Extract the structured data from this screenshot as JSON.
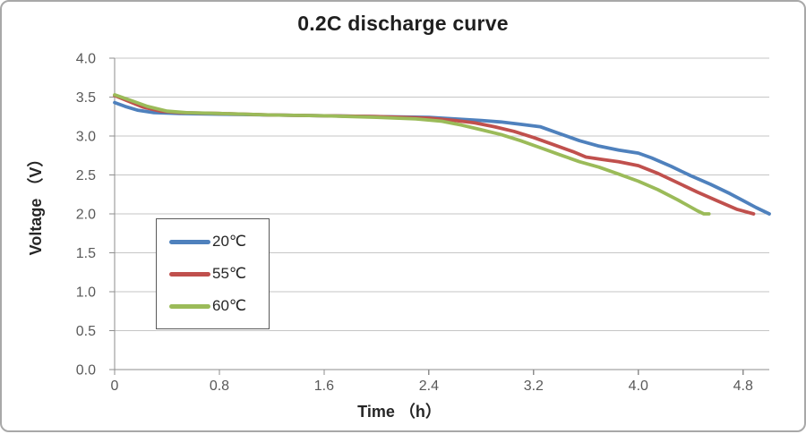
{
  "chart": {
    "title": "0.2C discharge curve",
    "x_axis_title": "Time （h）",
    "y_axis_title": "Voltage （V）"
  },
  "colors": {
    "grid": "#C6C6C6",
    "axis": "#8E8E8E",
    "tick_label": "#595959",
    "title_text": "#1F1F1F",
    "legend_border": "#595959",
    "figure_border": "#A8A8A8",
    "background": "#FFFFFF",
    "series_blue": "#4F81BD",
    "series_red": "#C0504D",
    "series_green": "#9BBB59"
  },
  "chart_data": {
    "type": "line",
    "title": "0.2C discharge curve",
    "xlabel": "Time （h）",
    "ylabel": "Voltage （V）",
    "xlim": [
      0,
      5
    ],
    "ylim": [
      0,
      4
    ],
    "x_ticks": [
      0,
      0.8,
      1.6,
      2.4,
      3.2,
      4,
      4.8
    ],
    "x_tick_labels": [
      "0",
      "0.8",
      "1.6",
      "2.4",
      "3.2",
      "4.0",
      "4.8"
    ],
    "y_ticks": [
      0,
      0.5,
      1,
      1.5,
      2,
      2.5,
      3,
      3.5,
      4
    ],
    "y_tick_labels": [
      "0.0",
      "0.5",
      "1.0",
      "1.5",
      "2.0",
      "2.5",
      "3.0",
      "3.5",
      "4.0"
    ],
    "grid": "horizontal-only",
    "legend_position": "inside-left",
    "series": [
      {
        "name": "20℃",
        "color": "#4F81BD",
        "points": [
          [
            0,
            3.43
          ],
          [
            0.08,
            3.38
          ],
          [
            0.18,
            3.33
          ],
          [
            0.3,
            3.3
          ],
          [
            0.5,
            3.29
          ],
          [
            0.8,
            3.28
          ],
          [
            1.2,
            3.27
          ],
          [
            1.6,
            3.26
          ],
          [
            2,
            3.25
          ],
          [
            2.4,
            3.24
          ],
          [
            2.6,
            3.22
          ],
          [
            2.8,
            3.2
          ],
          [
            2.95,
            3.18
          ],
          [
            3.1,
            3.15
          ],
          [
            3.25,
            3.12
          ],
          [
            3.4,
            3.03
          ],
          [
            3.55,
            2.94
          ],
          [
            3.7,
            2.87
          ],
          [
            3.85,
            2.82
          ],
          [
            4,
            2.78
          ],
          [
            4.1,
            2.72
          ],
          [
            4.25,
            2.61
          ],
          [
            4.4,
            2.49
          ],
          [
            4.55,
            2.38
          ],
          [
            4.7,
            2.26
          ],
          [
            4.8,
            2.17
          ],
          [
            4.9,
            2.08
          ],
          [
            5,
            2
          ]
        ]
      },
      {
        "name": "55℃",
        "color": "#C0504D",
        "points": [
          [
            0,
            3.52
          ],
          [
            0.1,
            3.45
          ],
          [
            0.22,
            3.37
          ],
          [
            0.35,
            3.32
          ],
          [
            0.5,
            3.3
          ],
          [
            0.8,
            3.29
          ],
          [
            1.2,
            3.27
          ],
          [
            1.6,
            3.26
          ],
          [
            2,
            3.25
          ],
          [
            2.4,
            3.23
          ],
          [
            2.6,
            3.2
          ],
          [
            2.75,
            3.17
          ],
          [
            2.9,
            3.12
          ],
          [
            3.05,
            3.06
          ],
          [
            3.2,
            2.98
          ],
          [
            3.35,
            2.89
          ],
          [
            3.5,
            2.8
          ],
          [
            3.6,
            2.73
          ],
          [
            3.72,
            2.7
          ],
          [
            3.85,
            2.67
          ],
          [
            4,
            2.62
          ],
          [
            4.15,
            2.52
          ],
          [
            4.3,
            2.4
          ],
          [
            4.45,
            2.28
          ],
          [
            4.6,
            2.17
          ],
          [
            4.75,
            2.06
          ],
          [
            4.88,
            2
          ]
        ]
      },
      {
        "name": "60℃",
        "color": "#9BBB59",
        "points": [
          [
            0,
            3.53
          ],
          [
            0.12,
            3.46
          ],
          [
            0.25,
            3.38
          ],
          [
            0.4,
            3.32
          ],
          [
            0.55,
            3.3
          ],
          [
            0.8,
            3.29
          ],
          [
            1.2,
            3.27
          ],
          [
            1.6,
            3.26
          ],
          [
            2,
            3.24
          ],
          [
            2.3,
            3.22
          ],
          [
            2.5,
            3.19
          ],
          [
            2.65,
            3.14
          ],
          [
            2.8,
            3.08
          ],
          [
            2.95,
            3.02
          ],
          [
            3.1,
            2.94
          ],
          [
            3.25,
            2.85
          ],
          [
            3.4,
            2.76
          ],
          [
            3.55,
            2.67
          ],
          [
            3.7,
            2.6
          ],
          [
            3.85,
            2.51
          ],
          [
            4,
            2.42
          ],
          [
            4.15,
            2.31
          ],
          [
            4.3,
            2.18
          ],
          [
            4.45,
            2.04
          ],
          [
            4.5,
            2
          ],
          [
            4.54,
            2
          ]
        ]
      }
    ]
  }
}
